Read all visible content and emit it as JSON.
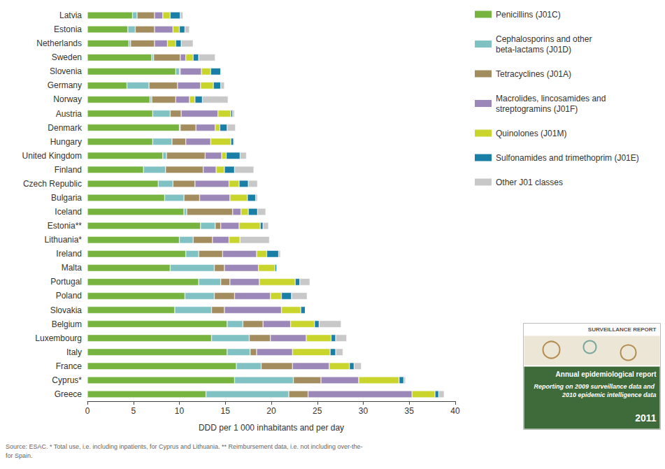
{
  "chart_data": {
    "type": "bar",
    "orientation": "horizontal",
    "stacked": true,
    "grid": false,
    "legend": "right",
    "xlabel": "DDD per 1 000 inhabitants and per day",
    "xlim": [
      0,
      40
    ],
    "xticks": [
      0,
      5,
      10,
      15,
      20,
      25,
      30,
      35,
      40
    ],
    "categories": [
      "Latvia",
      "Estonia",
      "Netherlands",
      "Sweden",
      "Slovenia",
      "Germany",
      "Norway",
      "Austria",
      "Denmark",
      "Hungary",
      "United Kingdom",
      "Finland",
      "Czech Republic",
      "Bulgaria",
      "Iceland",
      "Estonia**",
      "Lithuania*",
      "Ireland",
      "Malta",
      "Portugal",
      "Poland",
      "Slovakia",
      "Belgium",
      "Luxembourg",
      "Italy",
      "France",
      "Cyprus*",
      "Greece"
    ],
    "series": [
      {
        "name": "Penicillins (J01C)",
        "color": "#77b43f",
        "values": [
          4.9,
          4.4,
          4.5,
          7.0,
          9.6,
          4.3,
          6.8,
          7.1,
          10.0,
          7.1,
          8.2,
          6.1,
          7.7,
          8.4,
          10.5,
          12.3,
          10.0,
          10.7,
          9.0,
          12.1,
          10.6,
          9.5,
          15.2,
          13.5,
          15.2,
          16.2,
          16.0,
          12.9
        ]
      },
      {
        "name": "Cephalosporins and other beta-lactams (J01D)",
        "color": "#80c1c4",
        "values": [
          0.5,
          0.8,
          0.2,
          0.2,
          0.4,
          2.4,
          0.2,
          1.9,
          0.1,
          2.1,
          0.4,
          2.4,
          1.6,
          2.1,
          0.3,
          1.6,
          1.5,
          1.4,
          4.8,
          2.4,
          3.2,
          4.0,
          1.7,
          4.1,
          2.5,
          2.7,
          6.4,
          9.0
        ]
      },
      {
        "name": "Tetracyclines (J01A)",
        "color": "#a38c5e",
        "values": [
          1.9,
          2.1,
          2.6,
          2.9,
          0.1,
          3.1,
          2.6,
          1.2,
          1.7,
          1.5,
          4.2,
          4.1,
          2.4,
          1.7,
          5.0,
          0.6,
          2.1,
          2.6,
          1.1,
          1.0,
          2.2,
          1.4,
          2.2,
          2.3,
          0.7,
          3.4,
          3.0,
          2.1
        ]
      },
      {
        "name": "Macrolides, lincosamides and streptogramins (J01F)",
        "color": "#9c88b8",
        "values": [
          0.9,
          2.0,
          1.4,
          0.6,
          2.3,
          2.5,
          1.5,
          4.0,
          2.1,
          2.7,
          1.8,
          1.4,
          3.7,
          3.3,
          0.9,
          2.0,
          1.8,
          3.7,
          3.7,
          3.2,
          3.9,
          6.2,
          3.0,
          3.9,
          3.9,
          4.0,
          4.1,
          11.3
        ]
      },
      {
        "name": "Quinolones (J01M)",
        "color": "#c9d52c",
        "values": [
          0.8,
          0.7,
          0.9,
          0.8,
          1.0,
          1.4,
          0.6,
          1.4,
          0.5,
          2.2,
          0.5,
          0.9,
          1.1,
          1.9,
          0.8,
          2.3,
          1.2,
          1.1,
          1.8,
          3.9,
          1.2,
          2.1,
          2.6,
          2.7,
          4.1,
          2.2,
          4.4,
          2.5
        ]
      },
      {
        "name": "Sulfonamides and trimethoprim (J01E)",
        "color": "#1a7fa6",
        "values": [
          1.1,
          0.6,
          0.6,
          0.6,
          1.1,
          0.8,
          0.8,
          0.2,
          0.8,
          0.3,
          1.5,
          1.1,
          1.0,
          0.9,
          1.0,
          0.3,
          0,
          1.3,
          0.2,
          0.5,
          1.1,
          0.5,
          0.5,
          0.5,
          0.6,
          0.5,
          0.5,
          0.4
        ]
      },
      {
        "name": "Other J01 classes",
        "color": "#c8c8c8",
        "values": [
          0.3,
          0.5,
          1.3,
          1.8,
          0,
          0.4,
          2.8,
          0.2,
          0.9,
          0.1,
          0.7,
          2.1,
          1.0,
          0.2,
          0.9,
          0.6,
          3.2,
          0.2,
          0,
          1.1,
          1.7,
          0,
          2.4,
          1.2,
          0.8,
          0.8,
          0.2,
          0.6
        ]
      }
    ],
    "notes": [
      "Source: ESAC. * Total use, i.e. including inpatients, for Cyprus and Lithuania. ** Reimbursement data, i.e. not including over-the-",
      "for Spain."
    ],
    "cover": {
      "header": "SURVEILLANCE REPORT",
      "title": "Annual epidemiological report",
      "subtitle": "Reporting on 2009 surveillance data and 2010 epidemic intelligence data",
      "year": "2011"
    }
  }
}
